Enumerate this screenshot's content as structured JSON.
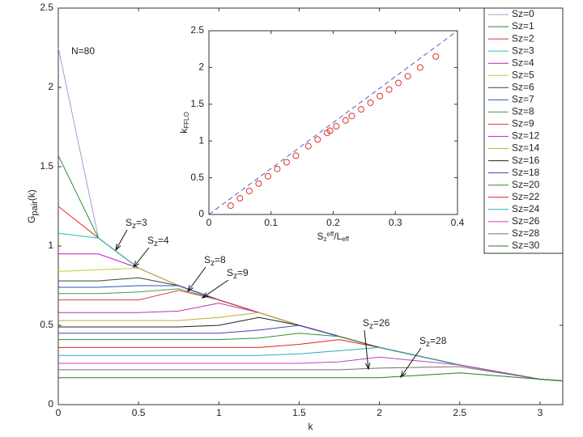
{
  "chart_data": [
    {
      "type": "line",
      "x": [
        0,
        0.25,
        0.5,
        0.75,
        1,
        1.25,
        1.5,
        1.75,
        2,
        2.5,
        3,
        3.1416
      ],
      "xlim": [
        0,
        3.1416
      ],
      "ylim": [
        0,
        2.5
      ],
      "xticks": [
        0,
        0.5,
        1,
        1.5,
        2,
        2.5,
        3
      ],
      "yticks": [
        0,
        0.5,
        1,
        1.5,
        2,
        2.5
      ],
      "xlabel": "k",
      "ylabel": [
        {
          "text": "G"
        },
        {
          "text": "pair",
          "shift": "sub"
        },
        {
          "text": "(k)"
        }
      ],
      "legend": "upper right",
      "note": {
        "text": "N=80",
        "color": "#e02020"
      },
      "annotations": [
        [
          {
            "text": "S"
          },
          {
            "text": "z",
            "shift": "sub"
          },
          {
            "text": "=3"
          }
        ],
        [
          {
            "text": "S"
          },
          {
            "text": "z",
            "shift": "sub"
          },
          {
            "text": "=4"
          }
        ],
        [
          {
            "text": "S"
          },
          {
            "text": "z",
            "shift": "sub"
          },
          {
            "text": "=8"
          }
        ],
        [
          {
            "text": "S"
          },
          {
            "text": "z",
            "shift": "sub"
          },
          {
            "text": "=9"
          }
        ],
        [
          {
            "text": "S"
          },
          {
            "text": "z",
            "shift": "sub"
          },
          {
            "text": "=26"
          }
        ],
        [
          {
            "text": "S"
          },
          {
            "text": "z",
            "shift": "sub"
          },
          {
            "text": "=28"
          }
        ]
      ],
      "series": [
        {
          "name": "Sz=0",
          "color": "#9aa0d0",
          "values": [
            2.25,
            1.05,
            0.86,
            0.75,
            0.66,
            0.58,
            0.5,
            0.43,
            0.36,
            0.25,
            0.16,
            0.15
          ]
        },
        {
          "name": "Sz=1",
          "color": "#2e8b2e",
          "values": [
            1.57,
            1.05,
            0.86,
            0.75,
            0.66,
            0.58,
            0.5,
            0.43,
            0.36,
            0.25,
            0.16,
            0.15
          ]
        },
        {
          "name": "Sz=2",
          "color": "#e03030",
          "values": [
            1.25,
            1.05,
            0.86,
            0.75,
            0.66,
            0.58,
            0.5,
            0.43,
            0.36,
            0.25,
            0.16,
            0.15
          ]
        },
        {
          "name": "Sz=3",
          "color": "#20c0c0",
          "values": [
            1.08,
            1.05,
            0.86,
            0.75,
            0.66,
            0.58,
            0.5,
            0.43,
            0.36,
            0.25,
            0.16,
            0.15
          ]
        },
        {
          "name": "Sz=4",
          "color": "#c020c0",
          "values": [
            0.95,
            0.95,
            0.86,
            0.75,
            0.66,
            0.58,
            0.5,
            0.43,
            0.36,
            0.25,
            0.16,
            0.15
          ]
        },
        {
          "name": "Sz=5",
          "color": "#c8c840",
          "values": [
            0.84,
            0.85,
            0.86,
            0.75,
            0.66,
            0.58,
            0.5,
            0.43,
            0.36,
            0.25,
            0.16,
            0.15
          ]
        },
        {
          "name": "Sz=6",
          "color": "#404040",
          "values": [
            0.78,
            0.78,
            0.8,
            0.75,
            0.66,
            0.58,
            0.5,
            0.43,
            0.36,
            0.25,
            0.16,
            0.15
          ]
        },
        {
          "name": "Sz=7",
          "color": "#3050c0",
          "values": [
            0.74,
            0.74,
            0.75,
            0.75,
            0.66,
            0.58,
            0.5,
            0.43,
            0.36,
            0.25,
            0.16,
            0.15
          ]
        },
        {
          "name": "Sz=8",
          "color": "#40a040",
          "values": [
            0.7,
            0.7,
            0.71,
            0.73,
            0.66,
            0.58,
            0.5,
            0.43,
            0.36,
            0.25,
            0.16,
            0.15
          ]
        },
        {
          "name": "Sz=9",
          "color": "#e04040",
          "values": [
            0.66,
            0.66,
            0.66,
            0.72,
            0.66,
            0.58,
            0.5,
            0.43,
            0.36,
            0.25,
            0.16,
            0.15
          ]
        },
        {
          "name": "Sz=12",
          "color": "#c030c0",
          "values": [
            0.58,
            0.58,
            0.58,
            0.59,
            0.64,
            0.58,
            0.5,
            0.43,
            0.36,
            0.25,
            0.16,
            0.15
          ]
        },
        {
          "name": "Sz=14",
          "color": "#c0b030",
          "values": [
            0.53,
            0.53,
            0.53,
            0.53,
            0.55,
            0.58,
            0.5,
            0.43,
            0.36,
            0.25,
            0.16,
            0.15
          ]
        },
        {
          "name": "Sz=16",
          "color": "#202020",
          "values": [
            0.49,
            0.49,
            0.49,
            0.49,
            0.5,
            0.55,
            0.5,
            0.43,
            0.36,
            0.25,
            0.16,
            0.15
          ]
        },
        {
          "name": "Sz=18",
          "color": "#4040c0",
          "values": [
            0.45,
            0.45,
            0.45,
            0.45,
            0.45,
            0.47,
            0.5,
            0.43,
            0.36,
            0.25,
            0.16,
            0.15
          ]
        },
        {
          "name": "Sz=20",
          "color": "#309030",
          "values": [
            0.41,
            0.41,
            0.41,
            0.41,
            0.41,
            0.42,
            0.45,
            0.43,
            0.36,
            0.25,
            0.16,
            0.15
          ]
        },
        {
          "name": "Sz=22",
          "color": "#e02020",
          "values": [
            0.36,
            0.36,
            0.36,
            0.36,
            0.36,
            0.36,
            0.38,
            0.41,
            0.36,
            0.25,
            0.16,
            0.15
          ]
        },
        {
          "name": "Sz=24",
          "color": "#20b0b0",
          "values": [
            0.31,
            0.31,
            0.31,
            0.31,
            0.31,
            0.31,
            0.32,
            0.34,
            0.36,
            0.25,
            0.16,
            0.15
          ]
        },
        {
          "name": "Sz=26",
          "color": "#c040c0",
          "values": [
            0.26,
            0.26,
            0.26,
            0.26,
            0.26,
            0.26,
            0.26,
            0.27,
            0.3,
            0.25,
            0.16,
            0.15
          ]
        },
        {
          "name": "Sz=28",
          "color": "#707070",
          "values": [
            0.22,
            0.22,
            0.22,
            0.22,
            0.22,
            0.22,
            0.22,
            0.22,
            0.23,
            0.24,
            0.16,
            0.15
          ]
        },
        {
          "name": "Sz=30",
          "color": "#208020",
          "values": [
            0.17,
            0.17,
            0.17,
            0.17,
            0.17,
            0.17,
            0.17,
            0.17,
            0.17,
            0.2,
            0.16,
            0.15
          ]
        }
      ]
    },
    {
      "type": "scatter",
      "xlim": [
        0,
        0.4
      ],
      "ylim": [
        0,
        2.5
      ],
      "xticks": [
        0,
        0.1,
        0.2,
        0.3,
        0.4
      ],
      "yticks": [
        0,
        0.5,
        1,
        1.5,
        2,
        2.5
      ],
      "xlabel": [
        {
          "text": "S"
        },
        {
          "text": "z",
          "shift": "sub"
        },
        {
          "text": "eff",
          "shift": "super"
        },
        {
          "text": "/L"
        },
        {
          "text": "eff",
          "shift": "sub"
        }
      ],
      "ylabel": [
        {
          "text": "k"
        },
        {
          "text": "FFLO",
          "shift": "sub"
        }
      ],
      "series": [
        {
          "type": "line",
          "dashed": true,
          "color": "#4a5fd0",
          "x": [
            0,
            0.4
          ],
          "y": [
            0,
            2.5
          ]
        },
        {
          "type": "scatter",
          "marker": "circle",
          "color": "#e03030",
          "x": [
            0.035,
            0.05,
            0.065,
            0.08,
            0.095,
            0.11,
            0.125,
            0.14,
            0.16,
            0.175,
            0.19,
            0.195,
            0.205,
            0.22,
            0.23,
            0.245,
            0.26,
            0.275,
            0.29,
            0.305,
            0.32,
            0.34,
            0.365
          ],
          "y": [
            0.12,
            0.22,
            0.32,
            0.42,
            0.52,
            0.62,
            0.71,
            0.8,
            0.93,
            1.02,
            1.11,
            1.14,
            1.2,
            1.28,
            1.34,
            1.43,
            1.52,
            1.61,
            1.7,
            1.79,
            1.88,
            2.0,
            2.15
          ]
        }
      ]
    }
  ]
}
